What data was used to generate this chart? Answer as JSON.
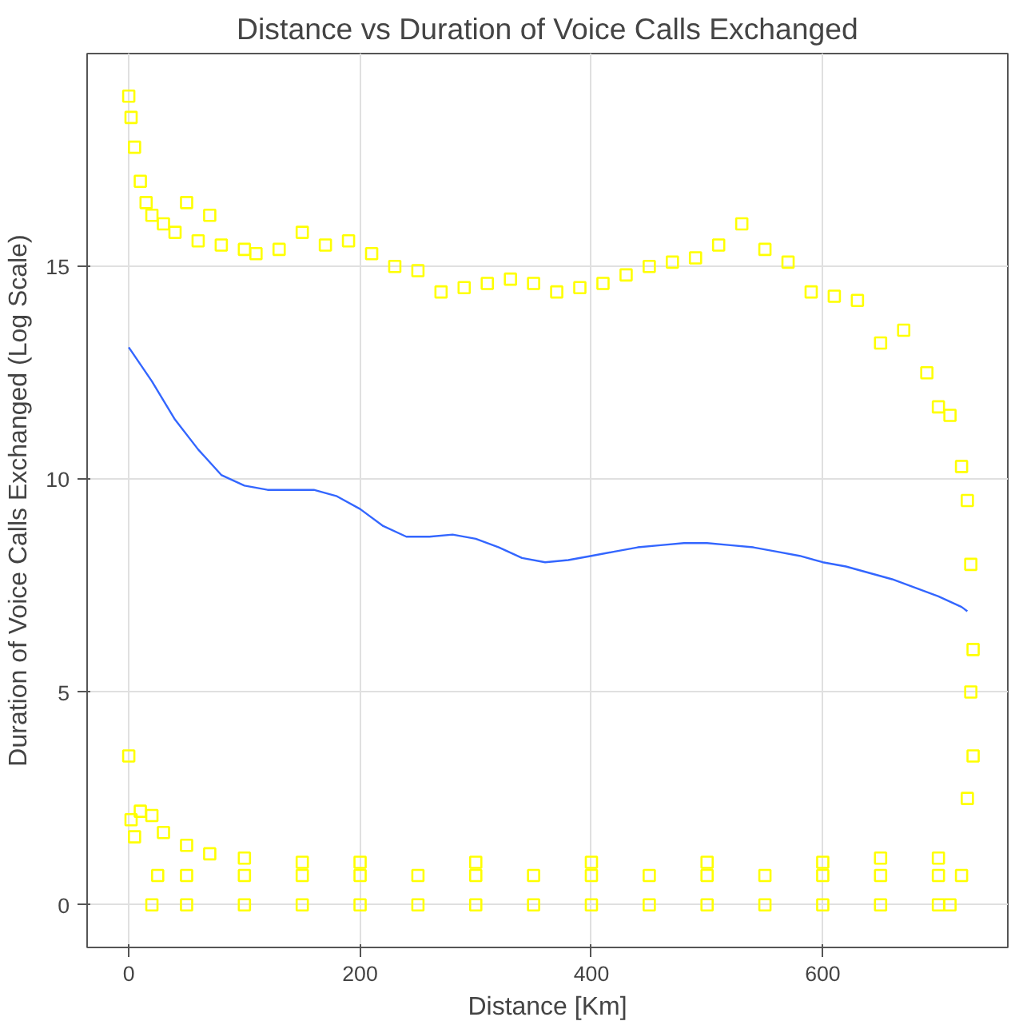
{
  "chart_data": {
    "type": "scatter",
    "title": "Distance vs Duration of Voice Calls Exchanged",
    "xlabel": "Distance [Km]",
    "ylabel": "Duration of Voice Calls Exchanged (Log Scale)",
    "xlim": [
      -36,
      760
    ],
    "ylim": [
      -1,
      20
    ],
    "xticks": [
      0,
      200,
      400,
      600
    ],
    "yticks": [
      0,
      5,
      10,
      15
    ],
    "grid": true,
    "series": [
      {
        "color": "#ffff00",
        "marker": "square",
        "x": [
          0,
          2,
          5,
          10,
          15,
          20,
          30,
          40,
          50,
          60,
          70,
          80,
          100,
          110,
          130,
          150,
          170,
          190,
          210,
          230,
          250,
          270,
          290,
          310,
          330,
          350,
          370,
          390,
          410,
          430,
          450,
          470,
          490,
          510,
          530,
          550,
          570,
          590,
          610,
          630,
          650,
          670,
          690,
          700,
          710,
          720,
          725,
          728,
          730,
          728,
          730,
          725,
          0,
          2,
          5,
          10,
          20,
          30,
          50,
          70,
          100,
          150,
          200,
          300,
          400,
          500,
          600,
          650,
          700,
          25,
          50,
          100,
          150,
          200,
          250,
          300,
          350,
          400,
          450,
          500,
          550,
          600,
          650,
          700,
          720,
          20,
          50,
          100,
          150,
          200,
          250,
          300,
          350,
          400,
          450,
          500,
          550,
          600,
          650,
          700,
          710
        ],
        "values": [
          19,
          18.5,
          17.8,
          17,
          16.5,
          16.2,
          16.0,
          15.8,
          16.5,
          15.6,
          16.2,
          15.5,
          15.4,
          15.3,
          15.4,
          15.8,
          15.5,
          15.6,
          15.3,
          15.0,
          14.9,
          14.4,
          14.5,
          14.6,
          14.7,
          14.6,
          14.4,
          14.5,
          14.6,
          14.8,
          15.0,
          15.1,
          15.2,
          15.5,
          16.0,
          15.4,
          15.1,
          14.4,
          14.3,
          14.2,
          13.2,
          13.5,
          12.5,
          11.7,
          11.5,
          10.3,
          9.5,
          8,
          6,
          5,
          3.5,
          2.5,
          3.5,
          2,
          1.6,
          2.2,
          2.1,
          1.7,
          1.4,
          1.2,
          1.1,
          1.0,
          1.0,
          1.0,
          1.0,
          1.0,
          1.0,
          1.1,
          1.1,
          0.69,
          0.69,
          0.69,
          0.69,
          0.69,
          0.69,
          0.69,
          0.69,
          0.69,
          0.69,
          0.69,
          0.69,
          0.69,
          0.69,
          0.69,
          0.69,
          0,
          0,
          0,
          0,
          0,
          0,
          0,
          0,
          0,
          0,
          0,
          0,
          0,
          0,
          0,
          0
        ]
      },
      {
        "type": "line",
        "color": "#3366ff",
        "x": [
          0,
          20,
          40,
          60,
          80,
          100,
          120,
          160,
          180,
          200,
          220,
          240,
          260,
          280,
          300,
          320,
          340,
          360,
          380,
          400,
          420,
          440,
          460,
          480,
          500,
          520,
          540,
          560,
          580,
          600,
          620,
          640,
          660,
          680,
          700,
          720,
          725
        ],
        "values": [
          13.1,
          12.3,
          11.4,
          10.7,
          10.1,
          9.85,
          9.75,
          9.75,
          9.6,
          9.3,
          8.9,
          8.65,
          8.65,
          8.7,
          8.6,
          8.4,
          8.15,
          8.05,
          8.1,
          8.2,
          8.3,
          8.4,
          8.45,
          8.5,
          8.5,
          8.45,
          8.4,
          8.3,
          8.2,
          8.05,
          7.95,
          7.8,
          7.65,
          7.45,
          7.25,
          7.0,
          6.9
        ]
      }
    ]
  }
}
